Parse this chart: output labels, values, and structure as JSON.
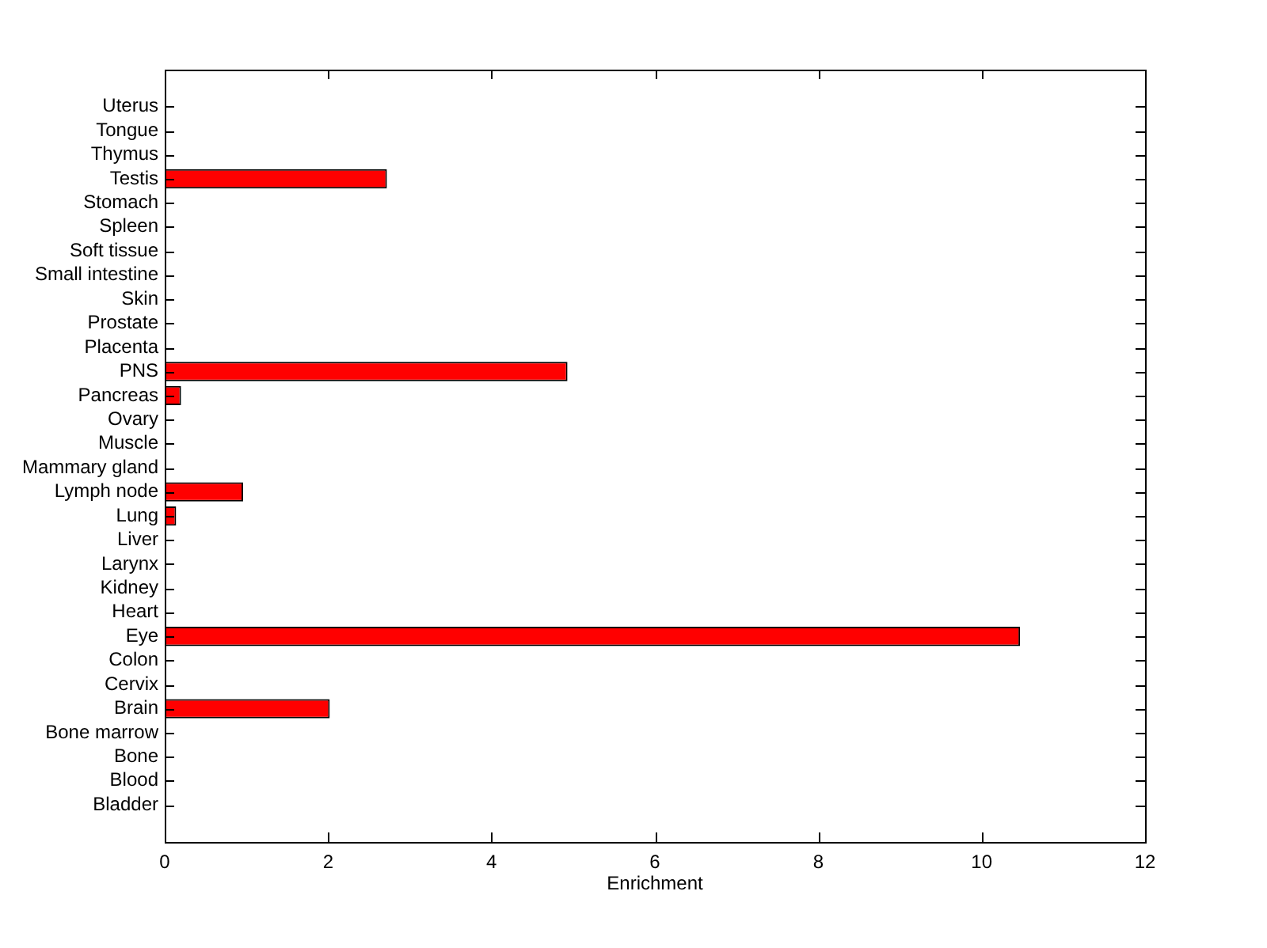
{
  "chart_data": {
    "type": "bar",
    "orientation": "horizontal",
    "categories": [
      "Uterus",
      "Tongue",
      "Thymus",
      "Testis",
      "Stomach",
      "Spleen",
      "Soft tissue",
      "Small intestine",
      "Skin",
      "Prostate",
      "Placenta",
      "PNS",
      "Pancreas",
      "Ovary",
      "Muscle",
      "Mammary gland",
      "Lymph node",
      "Lung",
      "Liver",
      "Larynx",
      "Kidney",
      "Heart",
      "Eye",
      "Colon",
      "Cervix",
      "Brain",
      "Bone marrow",
      "Bone",
      "Blood",
      "Bladder"
    ],
    "values": [
      0,
      0,
      0,
      2.72,
      0,
      0,
      0,
      0,
      0,
      0,
      0,
      4.93,
      0.2,
      0,
      0,
      0,
      0.96,
      0.14,
      0,
      0,
      0,
      0,
      10.47,
      0,
      0,
      2.02,
      0,
      0,
      0,
      0
    ],
    "color": "#ff0000",
    "xlabel": "Enrichment",
    "xlim": [
      0,
      12
    ],
    "xticks": [
      0,
      2,
      4,
      6,
      8,
      10,
      12
    ],
    "grid": false,
    "legend": false
  }
}
